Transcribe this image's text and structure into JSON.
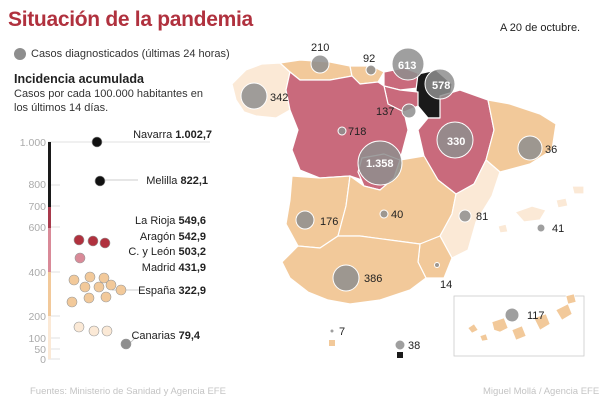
{
  "header": {
    "title": "Situación de la pandemia",
    "date": "A 20 de octubre."
  },
  "legend": {
    "cases_label": "Casos diagnosticados (últimas 24 horas)",
    "incidence_title": "Incidencia acumulada",
    "incidence_subtitle": "Casos por cada 100.000 habitantes en los últimos 14 días."
  },
  "colors": {
    "title": "#b0313e",
    "level_high": "#c96a7c",
    "level_mid": "#f2c99a",
    "level_low": "#fbe9d6",
    "level_top": "#1a1a1a",
    "bubble": "#8e8e8e"
  },
  "scale": {
    "ticks": [
      "1.000",
      "800",
      "700",
      "600",
      "400",
      "200",
      "100",
      "50",
      "0"
    ]
  },
  "chart_data": {
    "type": "scatter",
    "title": "Incidencia acumulada",
    "y_unit": "Casos por cada 100.000 habitantes en los últimos 14 días",
    "ylim": [
      0,
      1000
    ],
    "labeled_regions": [
      {
        "name": "Navarra",
        "value": "1.002,7"
      },
      {
        "name": "Melilla",
        "value": "822,1"
      },
      {
        "name": "La Rioja",
        "value": "549,6"
      },
      {
        "name": "Aragón",
        "value": "542,9"
      },
      {
        "name": "C. y León",
        "value": "503,2"
      },
      {
        "name": "Madrid",
        "value": "431,9"
      },
      {
        "name": "España",
        "value": "322,9"
      },
      {
        "name": "Canarias",
        "value": "79,4"
      }
    ]
  },
  "map": {
    "bubbles": [
      {
        "id": "galicia",
        "label": "342"
      },
      {
        "id": "asturias",
        "label": "210"
      },
      {
        "id": "cantabria",
        "label": "92"
      },
      {
        "id": "pais-vasco",
        "label": "613"
      },
      {
        "id": "navarra",
        "label": "578"
      },
      {
        "id": "la-rioja",
        "label": "137"
      },
      {
        "id": "aragon",
        "label": "718"
      },
      {
        "id": "cataluna",
        "label": "330"
      },
      {
        "id": "castilla-leon",
        "label": "36"
      },
      {
        "id": "madrid",
        "label": "1.358"
      },
      {
        "id": "extremadura",
        "label": "176"
      },
      {
        "id": "castilla-la-mancha",
        "label": "40"
      },
      {
        "id": "valencia",
        "label": "81"
      },
      {
        "id": "baleares",
        "label": "41"
      },
      {
        "id": "andalucia",
        "label": "386"
      },
      {
        "id": "murcia",
        "label": "14"
      },
      {
        "id": "canarias",
        "label": "117"
      },
      {
        "id": "ceuta",
        "label": "7"
      },
      {
        "id": "melilla",
        "label": "38"
      }
    ]
  },
  "footer": {
    "source": "Fuentes: Ministerio de Sanidad y Agencia EFE",
    "credit": "Miguel Mollá / Agencia EFE"
  }
}
